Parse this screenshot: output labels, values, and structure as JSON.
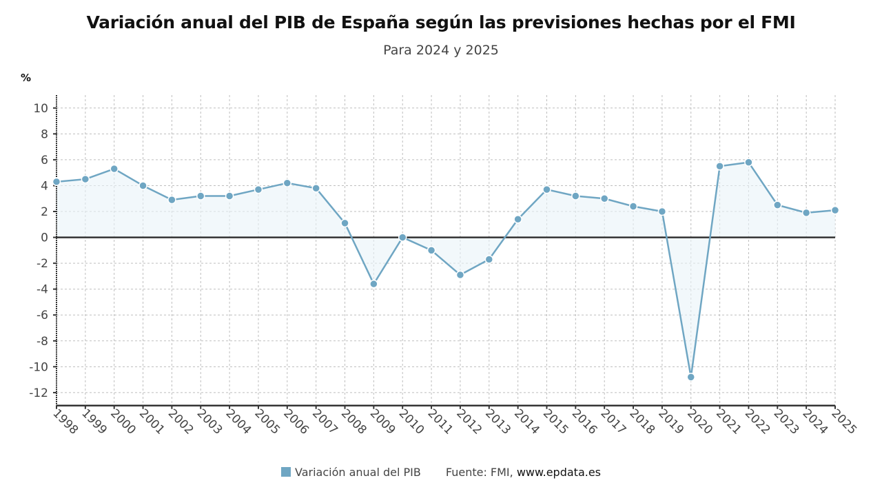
{
  "chart_data": {
    "type": "line",
    "title": "Variación anual del PIB de España según las previsiones hechas por el FMI",
    "subtitle": "Para 2024 y 2025",
    "ylabel": "%",
    "xlabel": "",
    "x": [
      "1998",
      "1999",
      "2000",
      "2001",
      "2002",
      "2003",
      "2004",
      "2005",
      "2006",
      "2007",
      "2008",
      "2009",
      "2010",
      "2011",
      "2012",
      "2013",
      "2014",
      "2015",
      "2016",
      "2017",
      "2018",
      "2019",
      "2020",
      "2021",
      "2022",
      "2023",
      "2024",
      "2025"
    ],
    "series": [
      {
        "name": "Variación anual del PIB",
        "color": "#6fa6c3",
        "values": [
          4.3,
          4.5,
          5.3,
          4.0,
          2.9,
          3.2,
          3.2,
          3.7,
          4.2,
          3.8,
          1.1,
          -3.6,
          0.0,
          -1.0,
          -2.9,
          -1.7,
          1.4,
          3.7,
          3.2,
          3.0,
          2.4,
          2.0,
          -10.8,
          5.5,
          5.8,
          2.5,
          1.9,
          2.1
        ]
      }
    ],
    "ylim": [
      -13,
      11
    ],
    "yticks": [
      10,
      8,
      6,
      4,
      2,
      0,
      -2,
      -4,
      -6,
      -8,
      -10,
      -12
    ],
    "grid": true,
    "legend": "bottom-center",
    "source": "Fuente: FMI, ",
    "source_site": "www.epdata.es"
  }
}
